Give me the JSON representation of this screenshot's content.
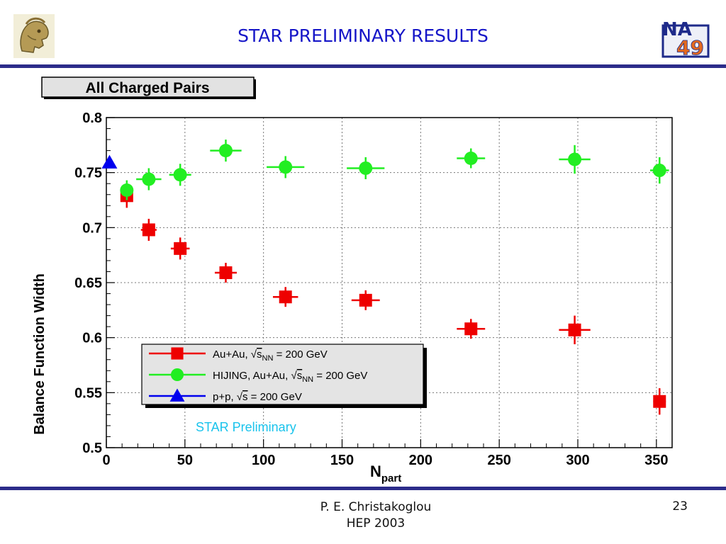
{
  "slide": {
    "title": "STAR PRELIMINARY RESULTS",
    "author": "P. E. Christakoglou",
    "conference": "HEP 2003",
    "page_number": "23",
    "logo_left": "greek-helmet-logo",
    "logo_right": "NA49 logo",
    "logo_right_text": [
      "NA",
      "49"
    ],
    "accent_color": "#2c2c8a",
    "title_color": "#1616c8"
  },
  "chart_data": {
    "type": "scatter",
    "title": "All Charged Pairs",
    "xlabel": "N",
    "xlabel_sub": "part",
    "ylabel": "Balance Function Width",
    "xlim": [
      0,
      360
    ],
    "ylim": [
      0.5,
      0.8
    ],
    "xticks": [
      0,
      50,
      100,
      150,
      200,
      250,
      300,
      350
    ],
    "yticks": [
      0.5,
      0.55,
      0.6,
      0.65,
      0.7,
      0.75,
      0.8
    ],
    "ytick_labels": [
      "0.5",
      "0.55",
      "0.6",
      "0.65",
      "0.7",
      "0.75",
      "0.8"
    ],
    "grid": true,
    "legend_position": "bottom-left",
    "annotation": "STAR Preliminary",
    "annotation_color": "#19c3ec",
    "series": [
      {
        "legend": "Au+Au, √s_NN = 200 GeV",
        "legend_parts": [
          "Au+Au, ",
          "s",
          "NN",
          " = 200 GeV"
        ],
        "color": "#ee0000",
        "marker": "square",
        "x": [
          13,
          27,
          47,
          76,
          114,
          165,
          232,
          298,
          352
        ],
        "y": [
          0.729,
          0.698,
          0.681,
          0.659,
          0.637,
          0.634,
          0.608,
          0.607,
          0.542
        ],
        "xerr": [
          3,
          5,
          6,
          7,
          8,
          9,
          9,
          10,
          4
        ],
        "yerr": [
          0.011,
          0.01,
          0.01,
          0.009,
          0.009,
          0.009,
          0.009,
          0.013,
          0.012
        ]
      },
      {
        "legend": "HIJING, Au+Au, √s_NN = 200 GeV",
        "legend_parts": [
          "HIJING, Au+Au,  ",
          "s",
          "NN",
          " = 200 GeV"
        ],
        "color": "#22ee22",
        "marker": "circle",
        "x": [
          13,
          27,
          47,
          76,
          114,
          165,
          232,
          298,
          352
        ],
        "y": [
          0.734,
          0.744,
          0.748,
          0.77,
          0.755,
          0.754,
          0.763,
          0.762,
          0.752
        ],
        "xerr": [
          3,
          8,
          7,
          10,
          12,
          12,
          9,
          10,
          6
        ],
        "yerr": [
          0.009,
          0.01,
          0.01,
          0.01,
          0.01,
          0.01,
          0.009,
          0.013,
          0.012
        ]
      },
      {
        "legend": "p+p, √s = 200 GeV",
        "legend_parts": [
          "p+p, ",
          "s",
          "",
          " = 200 GeV"
        ],
        "color": "#0000ee",
        "marker": "triangle",
        "x": [
          2
        ],
        "y": [
          0.759
        ],
        "xerr": [
          0
        ],
        "yerr": [
          0
        ]
      }
    ]
  }
}
